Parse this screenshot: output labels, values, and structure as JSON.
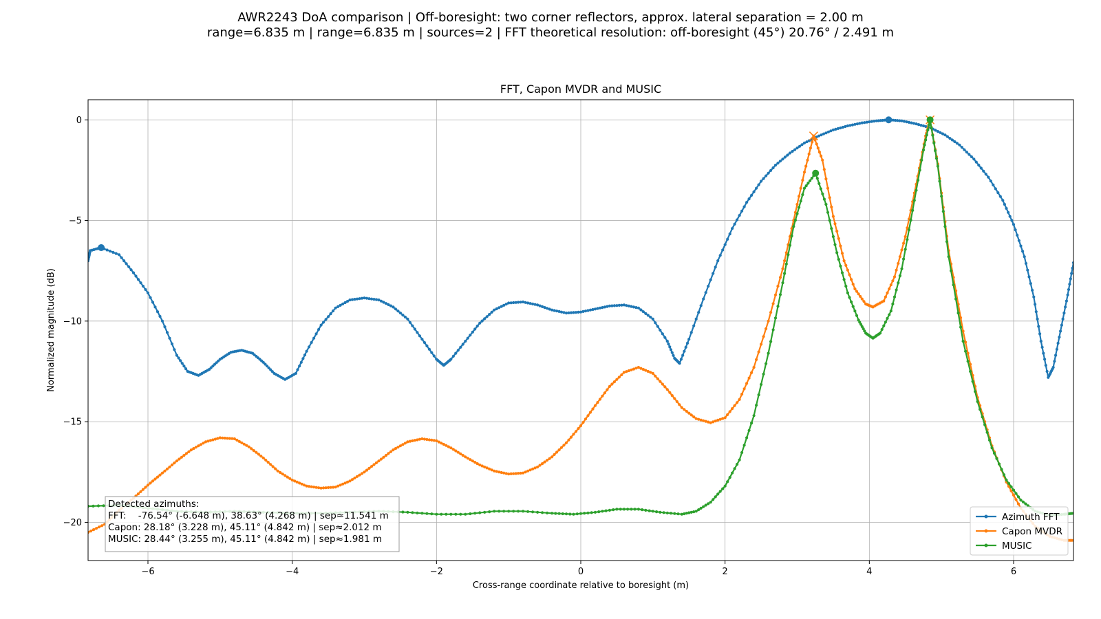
{
  "figure": {
    "suptitle_line1": "AWR2243 DoA comparison | Off-boresight: two corner reflectors, approx. lateral separation = 2.00 m",
    "suptitle_line2": "range=6.835 m | range=6.835 m | sources=2 | FFT theoretical resolution: off-boresight (45°) 20.76° / 2.491 m"
  },
  "chart_data": {
    "type": "line",
    "title": "FFT, Capon MVDR and MUSIC",
    "xlabel": "Cross-range coordinate relative to boresight (m)",
    "ylabel": "Normalized magnitude (dB)",
    "xlim": [
      -6.83,
      6.83
    ],
    "ylim": [
      -21.9,
      1.0
    ],
    "xticks": [
      -6,
      -4,
      -2,
      0,
      2,
      4,
      6
    ],
    "yticks": [
      0,
      -5,
      -10,
      -15,
      -20
    ],
    "xtick_labels": [
      "−6",
      "−4",
      "−2",
      "0",
      "2",
      "4",
      "6"
    ],
    "ytick_labels": [
      "0",
      "−5",
      "−10",
      "−15",
      "−20"
    ],
    "grid": true,
    "legend_position": "lower-right",
    "series": [
      {
        "name": "Azimuth FFT",
        "color": "#1f77b4",
        "points": [
          [
            -6.83,
            -7.0
          ],
          [
            -6.8,
            -6.5
          ],
          [
            -6.65,
            -6.35
          ],
          [
            -6.4,
            -6.7
          ],
          [
            -6.2,
            -7.6
          ],
          [
            -6.0,
            -8.6
          ],
          [
            -5.8,
            -10.0
          ],
          [
            -5.6,
            -11.7
          ],
          [
            -5.45,
            -12.5
          ],
          [
            -5.3,
            -12.7
          ],
          [
            -5.15,
            -12.4
          ],
          [
            -5.0,
            -11.9
          ],
          [
            -4.85,
            -11.55
          ],
          [
            -4.7,
            -11.45
          ],
          [
            -4.55,
            -11.6
          ],
          [
            -4.4,
            -12.05
          ],
          [
            -4.25,
            -12.6
          ],
          [
            -4.1,
            -12.9
          ],
          [
            -3.95,
            -12.6
          ],
          [
            -3.8,
            -11.5
          ],
          [
            -3.6,
            -10.2
          ],
          [
            -3.4,
            -9.35
          ],
          [
            -3.2,
            -8.95
          ],
          [
            -3.0,
            -8.85
          ],
          [
            -2.8,
            -8.95
          ],
          [
            -2.6,
            -9.3
          ],
          [
            -2.4,
            -9.9
          ],
          [
            -2.2,
            -10.9
          ],
          [
            -2.0,
            -11.9
          ],
          [
            -1.9,
            -12.2
          ],
          [
            -1.8,
            -11.9
          ],
          [
            -1.6,
            -11.0
          ],
          [
            -1.4,
            -10.1
          ],
          [
            -1.2,
            -9.45
          ],
          [
            -1.0,
            -9.1
          ],
          [
            -0.8,
            -9.05
          ],
          [
            -0.6,
            -9.2
          ],
          [
            -0.4,
            -9.45
          ],
          [
            -0.2,
            -9.6
          ],
          [
            0.0,
            -9.55
          ],
          [
            0.2,
            -9.4
          ],
          [
            0.4,
            -9.25
          ],
          [
            0.6,
            -9.2
          ],
          [
            0.8,
            -9.35
          ],
          [
            1.0,
            -9.9
          ],
          [
            1.2,
            -11.0
          ],
          [
            1.3,
            -11.85
          ],
          [
            1.37,
            -12.1
          ],
          [
            1.5,
            -10.9
          ],
          [
            1.7,
            -8.9
          ],
          [
            1.9,
            -7.0
          ],
          [
            2.1,
            -5.4
          ],
          [
            2.3,
            -4.1
          ],
          [
            2.5,
            -3.05
          ],
          [
            2.7,
            -2.25
          ],
          [
            2.9,
            -1.65
          ],
          [
            3.1,
            -1.15
          ],
          [
            3.3,
            -0.8
          ],
          [
            3.5,
            -0.5
          ],
          [
            3.7,
            -0.3
          ],
          [
            3.9,
            -0.15
          ],
          [
            4.1,
            -0.05
          ],
          [
            4.268,
            0.0
          ],
          [
            4.45,
            -0.05
          ],
          [
            4.65,
            -0.2
          ],
          [
            4.85,
            -0.4
          ],
          [
            5.05,
            -0.75
          ],
          [
            5.25,
            -1.25
          ],
          [
            5.45,
            -1.95
          ],
          [
            5.65,
            -2.85
          ],
          [
            5.85,
            -4.0
          ],
          [
            6.0,
            -5.2
          ],
          [
            6.15,
            -6.8
          ],
          [
            6.28,
            -8.8
          ],
          [
            6.38,
            -11.0
          ],
          [
            6.48,
            -12.8
          ],
          [
            6.55,
            -12.3
          ],
          [
            6.65,
            -10.5
          ],
          [
            6.75,
            -8.7
          ],
          [
            6.83,
            -7.1
          ]
        ],
        "markers": [
          [
            -6.648,
            -6.35
          ],
          [
            4.268,
            0.0
          ]
        ]
      },
      {
        "name": "Capon MVDR",
        "color": "#ff7f0e",
        "points": [
          [
            -6.83,
            -20.5
          ],
          [
            -6.6,
            -20.1
          ],
          [
            -6.4,
            -19.4
          ],
          [
            -6.2,
            -18.8
          ],
          [
            -6.0,
            -18.15
          ],
          [
            -5.8,
            -17.55
          ],
          [
            -5.6,
            -16.95
          ],
          [
            -5.4,
            -16.4
          ],
          [
            -5.2,
            -16.0
          ],
          [
            -5.0,
            -15.8
          ],
          [
            -4.8,
            -15.85
          ],
          [
            -4.6,
            -16.25
          ],
          [
            -4.4,
            -16.8
          ],
          [
            -4.2,
            -17.45
          ],
          [
            -4.0,
            -17.9
          ],
          [
            -3.8,
            -18.2
          ],
          [
            -3.6,
            -18.3
          ],
          [
            -3.4,
            -18.25
          ],
          [
            -3.2,
            -17.95
          ],
          [
            -3.0,
            -17.5
          ],
          [
            -2.8,
            -16.95
          ],
          [
            -2.6,
            -16.4
          ],
          [
            -2.4,
            -16.0
          ],
          [
            -2.2,
            -15.85
          ],
          [
            -2.0,
            -15.95
          ],
          [
            -1.8,
            -16.3
          ],
          [
            -1.6,
            -16.75
          ],
          [
            -1.4,
            -17.15
          ],
          [
            -1.2,
            -17.45
          ],
          [
            -1.0,
            -17.6
          ],
          [
            -0.8,
            -17.55
          ],
          [
            -0.6,
            -17.25
          ],
          [
            -0.4,
            -16.75
          ],
          [
            -0.2,
            -16.05
          ],
          [
            0.0,
            -15.2
          ],
          [
            0.2,
            -14.2
          ],
          [
            0.4,
            -13.25
          ],
          [
            0.6,
            -12.55
          ],
          [
            0.8,
            -12.3
          ],
          [
            1.0,
            -12.6
          ],
          [
            1.2,
            -13.4
          ],
          [
            1.4,
            -14.3
          ],
          [
            1.6,
            -14.85
          ],
          [
            1.8,
            -15.05
          ],
          [
            2.0,
            -14.8
          ],
          [
            2.2,
            -13.9
          ],
          [
            2.4,
            -12.3
          ],
          [
            2.6,
            -10.0
          ],
          [
            2.8,
            -7.4
          ],
          [
            2.95,
            -5.0
          ],
          [
            3.1,
            -2.6
          ],
          [
            3.228,
            -0.8
          ],
          [
            3.35,
            -2.0
          ],
          [
            3.5,
            -4.8
          ],
          [
            3.65,
            -7.0
          ],
          [
            3.8,
            -8.4
          ],
          [
            3.95,
            -9.15
          ],
          [
            4.05,
            -9.3
          ],
          [
            4.2,
            -9.0
          ],
          [
            4.35,
            -7.8
          ],
          [
            4.5,
            -5.8
          ],
          [
            4.65,
            -3.2
          ],
          [
            4.78,
            -0.8
          ],
          [
            4.842,
            0.0
          ],
          [
            4.95,
            -2.2
          ],
          [
            5.1,
            -6.5
          ],
          [
            5.3,
            -10.5
          ],
          [
            5.5,
            -13.8
          ],
          [
            5.7,
            -16.2
          ],
          [
            5.9,
            -18.0
          ],
          [
            6.1,
            -19.3
          ],
          [
            6.3,
            -20.2
          ],
          [
            6.5,
            -20.7
          ],
          [
            6.7,
            -20.9
          ],
          [
            6.83,
            -20.9
          ]
        ],
        "markers": [
          [
            3.228,
            -0.8
          ],
          [
            4.842,
            0.0
          ]
        ]
      },
      {
        "name": "MUSIC",
        "color": "#2ca02c",
        "points": [
          [
            -6.83,
            -19.2
          ],
          [
            -6.4,
            -19.15
          ],
          [
            -6.0,
            -19.3
          ],
          [
            -5.6,
            -19.45
          ],
          [
            -5.2,
            -19.5
          ],
          [
            -4.8,
            -19.45
          ],
          [
            -4.4,
            -19.5
          ],
          [
            -4.0,
            -19.55
          ],
          [
            -3.6,
            -19.55
          ],
          [
            -3.2,
            -19.5
          ],
          [
            -2.8,
            -19.45
          ],
          [
            -2.4,
            -19.5
          ],
          [
            -2.0,
            -19.6
          ],
          [
            -1.6,
            -19.6
          ],
          [
            -1.2,
            -19.45
          ],
          [
            -0.8,
            -19.45
          ],
          [
            -0.4,
            -19.55
          ],
          [
            -0.1,
            -19.6
          ],
          [
            0.2,
            -19.5
          ],
          [
            0.5,
            -19.35
          ],
          [
            0.8,
            -19.35
          ],
          [
            1.1,
            -19.5
          ],
          [
            1.4,
            -19.6
          ],
          [
            1.6,
            -19.45
          ],
          [
            1.8,
            -19.0
          ],
          [
            2.0,
            -18.2
          ],
          [
            2.2,
            -16.9
          ],
          [
            2.4,
            -14.7
          ],
          [
            2.6,
            -11.6
          ],
          [
            2.8,
            -8.1
          ],
          [
            2.95,
            -5.3
          ],
          [
            3.1,
            -3.4
          ],
          [
            3.255,
            -2.65
          ],
          [
            3.4,
            -4.2
          ],
          [
            3.55,
            -6.6
          ],
          [
            3.7,
            -8.6
          ],
          [
            3.85,
            -9.95
          ],
          [
            3.95,
            -10.6
          ],
          [
            4.05,
            -10.85
          ],
          [
            4.15,
            -10.6
          ],
          [
            4.3,
            -9.5
          ],
          [
            4.45,
            -7.4
          ],
          [
            4.6,
            -4.5
          ],
          [
            4.75,
            -1.5
          ],
          [
            4.842,
            0.0
          ],
          [
            4.95,
            -2.3
          ],
          [
            5.1,
            -6.8
          ],
          [
            5.3,
            -11.0
          ],
          [
            5.5,
            -14.0
          ],
          [
            5.7,
            -16.3
          ],
          [
            5.9,
            -17.9
          ],
          [
            6.1,
            -18.9
          ],
          [
            6.3,
            -19.45
          ],
          [
            6.5,
            -19.65
          ],
          [
            6.7,
            -19.6
          ],
          [
            6.83,
            -19.55
          ]
        ],
        "markers": [
          [
            3.255,
            -2.65
          ],
          [
            4.842,
            0.0
          ]
        ]
      }
    ]
  },
  "annotation": {
    "line1": "Detected azimuths:",
    "line2": "FFT:    -76.54° (-6.648 m), 38.63° (4.268 m) | sep≈11.541 m",
    "line3": "Capon: 28.18° (3.228 m), 45.11° (4.842 m) | sep≈2.012 m",
    "line4": "MUSIC: 28.44° (3.255 m), 45.11° (4.842 m) | sep≈1.981 m"
  },
  "legend": {
    "items": [
      "Azimuth FFT",
      "Capon MVDR",
      "MUSIC"
    ]
  }
}
